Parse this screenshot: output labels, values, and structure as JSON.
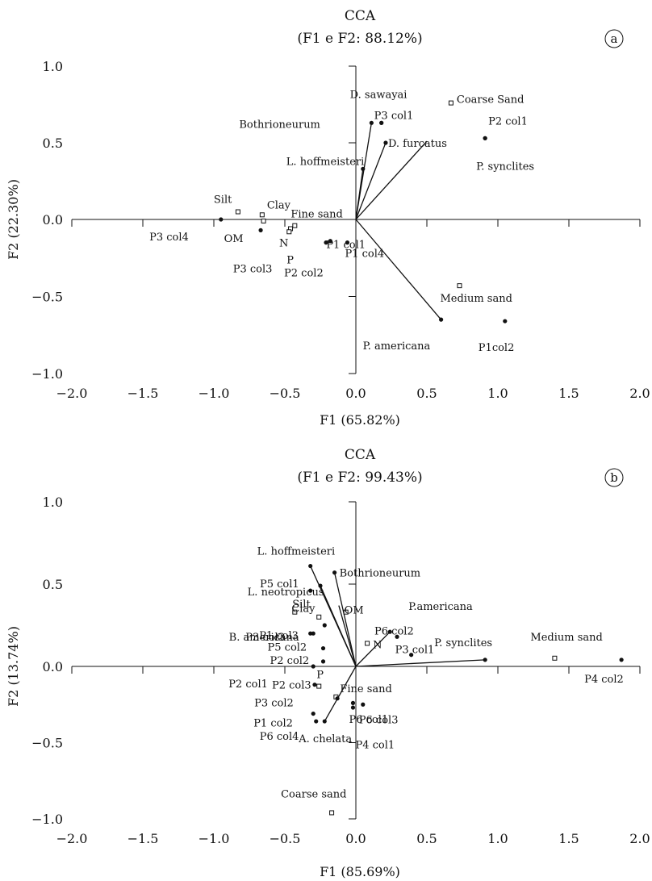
{
  "chart_data": [
    {
      "type": "scatter",
      "panel": "a",
      "title": "CCA",
      "subtitle": "(F1 e F2: 88.12%)",
      "xlabel": "F1 (65.82%)",
      "ylabel": "F2 (22.30%)",
      "xlim": [
        -2.0,
        2.0
      ],
      "ylim": [
        -1.0,
        1.0
      ],
      "xticks": [
        "-2.0",
        "-1.5",
        "-1.0",
        "-0.5",
        "0.0",
        "0.5",
        "1.0",
        "1.5",
        "2.0"
      ],
      "yticks": [
        "-1.0",
        "-0.5",
        "0.0",
        "0.5",
        "1.0"
      ],
      "grid": false,
      "samples": [
        {
          "label": "P3 col4",
          "x": -0.95,
          "y": 0.0
        },
        {
          "label": "P3 col3",
          "x": -0.67,
          "y": -0.07
        },
        {
          "label": "P1 col1",
          "x": -0.18,
          "y": -0.14
        },
        {
          "label": "P1 col4",
          "x": -0.06,
          "y": -0.15
        },
        {
          "label": "P3 col1",
          "x": 0.18,
          "y": 0.63
        },
        {
          "label": "P2 col1",
          "x": 0.91,
          "y": 0.53
        },
        {
          "label": "P1col2",
          "x": 1.05,
          "y": -0.66
        },
        {
          "label": "P2 col2",
          "x": -0.21,
          "y": -0.15
        }
      ],
      "species": [
        {
          "label": "Bothrioneurum",
          "x": 0.11,
          "y": 0.63
        },
        {
          "label": "D. sawayai",
          "x": 0.18,
          "y": 0.63
        },
        {
          "label": "D. furcatus",
          "x": 0.21,
          "y": 0.5
        },
        {
          "label": "L. hoffmeisteri",
          "x": 0.05,
          "y": 0.33
        },
        {
          "label": "P. americana",
          "x": 0.6,
          "y": -0.65
        },
        {
          "label": "P. synclites",
          "x": 0.91,
          "y": 0.53
        }
      ],
      "variables": [
        {
          "label": "Coarse Sand",
          "x": 0.67,
          "y": 0.76
        },
        {
          "label": "Medium sand",
          "x": 0.73,
          "y": -0.43
        },
        {
          "label": "Silt",
          "x": -0.83,
          "y": 0.05
        },
        {
          "label": "Clay",
          "x": -0.66,
          "y": 0.03
        },
        {
          "label": "OM",
          "x": -0.65,
          "y": -0.01
        },
        {
          "label": "N",
          "x": -0.46,
          "y": -0.06
        },
        {
          "label": "P",
          "x": -0.47,
          "y": -0.08
        },
        {
          "label": "Fine sand",
          "x": -0.43,
          "y": -0.04
        }
      ],
      "vectors": [
        {
          "x": 0.11,
          "y": 0.63
        },
        {
          "x": 0.21,
          "y": 0.5
        },
        {
          "x": 0.05,
          "y": 0.33
        },
        {
          "x": 0.5,
          "y": 0.51
        },
        {
          "x": 0.6,
          "y": -0.65
        }
      ]
    },
    {
      "type": "scatter",
      "panel": "b",
      "title": "CCA",
      "subtitle": "(F1 e F2: 99.43%)",
      "xlabel": "F1 (85.69%)",
      "ylabel": "F2 (13.74%)",
      "xlim": [
        -2.0,
        2.0
      ],
      "ylim": [
        -1.0,
        1.0
      ],
      "xticks": [
        "-2.0",
        "-1.5",
        "-1.0",
        "-0.5",
        "0.0",
        "0.5",
        "1.0",
        "1.5",
        "2.0"
      ],
      "yticks": [
        "-1.0",
        "-0.5",
        "0.0",
        "0.5",
        "1.0"
      ],
      "grid": false,
      "samples": [
        {
          "label": "P5 col1",
          "x": -0.25,
          "y": 0.49
        },
        {
          "label": "P3 col3",
          "x": -0.22,
          "y": 0.25
        },
        {
          "label": "P1 col3",
          "x": -0.3,
          "y": 0.2
        },
        {
          "label": "P5 col2",
          "x": -0.23,
          "y": 0.11
        },
        {
          "label": "P2 col2",
          "x": -0.23,
          "y": 0.03
        },
        {
          "label": "P2 col1",
          "x": -0.3,
          "y": 0.0
        },
        {
          "label": "P2 col3",
          "x": -0.29,
          "y": -0.12
        },
        {
          "label": "P3 col2",
          "x": -0.13,
          "y": -0.21
        },
        {
          "label": "P1 col2",
          "x": -0.3,
          "y": -0.31
        },
        {
          "label": "P6 col4",
          "x": -0.28,
          "y": -0.36
        },
        {
          "label": "P6 col1",
          "x": -0.02,
          "y": -0.27
        },
        {
          "label": "P6 col3",
          "x": 0.05,
          "y": -0.25
        },
        {
          "label": "P4 col1",
          "x": -0.02,
          "y": -0.24
        },
        {
          "label": "P6 col2",
          "x": 0.29,
          "y": 0.18
        },
        {
          "label": "P3 col1",
          "x": 0.39,
          "y": 0.07
        },
        {
          "label": "P4 col2",
          "x": 1.87,
          "y": 0.04
        }
      ],
      "species": [
        {
          "label": "L. hoffmeisteri",
          "x": -0.32,
          "y": 0.61
        },
        {
          "label": "L. neotropicus",
          "x": -0.32,
          "y": 0.46
        },
        {
          "label": "Bothrioneurum",
          "x": -0.15,
          "y": 0.57
        },
        {
          "label": "B. americana",
          "x": -0.32,
          "y": 0.2
        },
        {
          "label": "A. chelata",
          "x": -0.22,
          "y": -0.36
        },
        {
          "label": "P.americana",
          "x": 0.24,
          "y": 0.21
        },
        {
          "label": "P. synclites",
          "x": 0.91,
          "y": 0.04
        }
      ],
      "variables": [
        {
          "label": "Silt",
          "x": -0.26,
          "y": 0.3
        },
        {
          "label": "Clay",
          "x": -0.43,
          "y": 0.33
        },
        {
          "label": "OM",
          "x": -0.07,
          "y": 0.33
        },
        {
          "label": "N",
          "x": 0.08,
          "y": 0.14
        },
        {
          "label": "P",
          "x": -0.26,
          "y": -0.13
        },
        {
          "label": "Fine sand",
          "x": -0.14,
          "y": -0.2
        },
        {
          "label": "Medium sand",
          "x": 1.4,
          "y": 0.05
        },
        {
          "label": "Coarse sand",
          "x": -0.17,
          "y": -0.96
        }
      ],
      "vectors": [
        {
          "x": -0.32,
          "y": 0.61
        },
        {
          "x": -0.25,
          "y": 0.49
        },
        {
          "x": -0.15,
          "y": 0.57
        },
        {
          "x": -0.12,
          "y": 0.37
        },
        {
          "x": 0.24,
          "y": 0.21
        },
        {
          "x": 0.91,
          "y": 0.04
        },
        {
          "x": -0.22,
          "y": -0.36
        }
      ]
    }
  ]
}
